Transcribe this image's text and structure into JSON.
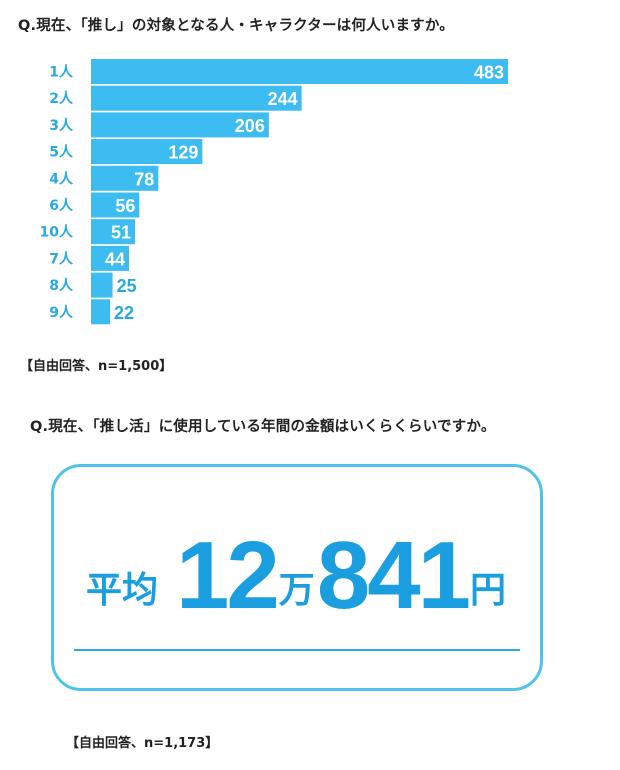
{
  "q1": {
    "title": "Q.現在、「推し」の対象となる人・キャラクターは何人いますか。",
    "note": "【自由回答、n=1,500】"
  },
  "q2": {
    "title": "Q.現在、「推し活」に使用している年間の金額はいくらくらいですか。",
    "avg_label": "平均",
    "amount_man": "12",
    "unit_man": "万",
    "amount_rest": "841",
    "unit_yen": "円",
    "note": "【自由回答、n=1,173】"
  },
  "colors": {
    "bar": "#3cbcf0",
    "label": "#29a9e0",
    "value_outside": "#29a9e0",
    "value_inside": "#ffffff",
    "box_border": "#4fc3ea",
    "big_text": "#1a9ee0"
  },
  "chart_data": {
    "type": "bar",
    "orientation": "horizontal",
    "categories": [
      "1人",
      "2人",
      "3人",
      "5人",
      "4人",
      "6人",
      "10人",
      "7人",
      "8人",
      "9人"
    ],
    "values": [
      483,
      244,
      206,
      129,
      78,
      56,
      51,
      44,
      25,
      22
    ],
    "title": "Q.現在、「推し」の対象となる人・キャラクターは何人いますか。",
    "xlabel": "",
    "ylabel": "",
    "xlim": [
      0,
      483
    ],
    "grid": false,
    "data_labels": true
  }
}
